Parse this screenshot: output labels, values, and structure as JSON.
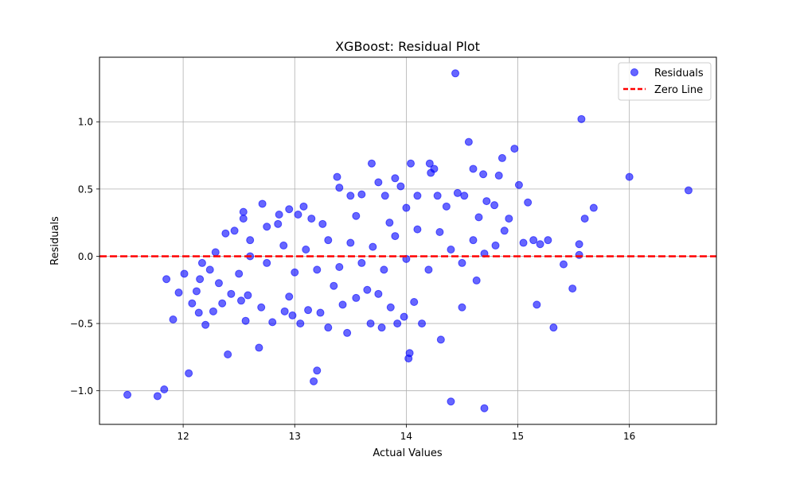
{
  "chart_data": {
    "type": "scatter",
    "title": "XGBoost: Residual Plot",
    "xlabel": "Actual Values",
    "ylabel": "Residuals",
    "xlim": [
      11.25,
      16.78
    ],
    "ylim": [
      -1.25,
      1.48
    ],
    "x_ticks": [
      12,
      13,
      14,
      15,
      16
    ],
    "x_tick_labels": [
      "12",
      "13",
      "14",
      "15",
      "16"
    ],
    "y_ticks": [
      -1.0,
      -0.5,
      0.0,
      0.5,
      1.0
    ],
    "y_tick_labels": [
      "−1.0",
      "−0.5",
      "0.0",
      "0.5",
      "1.0"
    ],
    "grid": true,
    "legend_position": "top-right",
    "series": [
      {
        "name": "Residuals",
        "kind": "scatter",
        "color": "#0000ff",
        "opacity": 0.6,
        "points": [
          [
            11.5,
            -1.03
          ],
          [
            11.77,
            -1.04
          ],
          [
            11.83,
            -0.99
          ],
          [
            11.85,
            -0.17
          ],
          [
            11.91,
            -0.47
          ],
          [
            11.96,
            -0.27
          ],
          [
            12.01,
            -0.13
          ],
          [
            12.05,
            -0.87
          ],
          [
            12.08,
            -0.35
          ],
          [
            12.12,
            -0.26
          ],
          [
            12.14,
            -0.42
          ],
          [
            12.15,
            -0.17
          ],
          [
            12.17,
            -0.05
          ],
          [
            12.2,
            -0.51
          ],
          [
            12.24,
            -0.1
          ],
          [
            12.27,
            -0.41
          ],
          [
            12.29,
            0.03
          ],
          [
            12.32,
            -0.2
          ],
          [
            12.35,
            -0.35
          ],
          [
            12.38,
            0.17
          ],
          [
            12.4,
            -0.73
          ],
          [
            12.43,
            -0.28
          ],
          [
            12.46,
            0.19
          ],
          [
            12.5,
            -0.13
          ],
          [
            12.52,
            -0.33
          ],
          [
            12.54,
            0.33
          ],
          [
            12.54,
            0.28
          ],
          [
            12.56,
            -0.48
          ],
          [
            12.58,
            -0.29
          ],
          [
            12.6,
            0.12
          ],
          [
            12.68,
            -0.68
          ],
          [
            12.7,
            -0.38
          ],
          [
            12.71,
            0.39
          ],
          [
            12.75,
            0.22
          ],
          [
            12.8,
            -0.49
          ],
          [
            12.85,
            0.24
          ],
          [
            12.86,
            0.31
          ],
          [
            12.91,
            -0.41
          ],
          [
            12.95,
            0.35
          ],
          [
            12.98,
            -0.44
          ],
          [
            13.03,
            0.31
          ],
          [
            13.05,
            -0.5
          ],
          [
            13.08,
            0.37
          ],
          [
            13.12,
            -0.4
          ],
          [
            13.17,
            -0.93
          ],
          [
            13.2,
            -0.85
          ],
          [
            13.23,
            -0.42
          ],
          [
            13.3,
            -0.53
          ],
          [
            13.38,
            0.59
          ],
          [
            13.4,
            0.51
          ],
          [
            13.43,
            -0.36
          ],
          [
            13.47,
            -0.57
          ],
          [
            13.5,
            0.45
          ],
          [
            13.55,
            -0.31
          ],
          [
            13.6,
            0.46
          ],
          [
            13.68,
            -0.5
          ],
          [
            13.69,
            0.69
          ],
          [
            13.75,
            0.55
          ],
          [
            13.78,
            -0.53
          ],
          [
            13.81,
            0.45
          ],
          [
            13.86,
            -0.38
          ],
          [
            13.9,
            0.58
          ],
          [
            13.92,
            -0.5
          ],
          [
            13.95,
            0.52
          ],
          [
            13.98,
            -0.45
          ],
          [
            14.0,
            0.36
          ],
          [
            14.02,
            -0.76
          ],
          [
            14.03,
            -0.72
          ],
          [
            14.04,
            0.69
          ],
          [
            14.07,
            -0.34
          ],
          [
            14.1,
            0.45
          ],
          [
            14.14,
            -0.5
          ],
          [
            14.21,
            0.69
          ],
          [
            14.22,
            0.62
          ],
          [
            14.25,
            0.65
          ],
          [
            14.28,
            0.45
          ],
          [
            14.31,
            -0.62
          ],
          [
            14.36,
            0.37
          ],
          [
            14.4,
            -1.08
          ],
          [
            14.44,
            1.36
          ],
          [
            14.46,
            0.47
          ],
          [
            14.5,
            -0.38
          ],
          [
            14.52,
            0.45
          ],
          [
            14.56,
            0.85
          ],
          [
            14.6,
            0.65
          ],
          [
            14.63,
            -0.18
          ],
          [
            14.65,
            0.29
          ],
          [
            14.69,
            0.61
          ],
          [
            14.7,
            -1.13
          ],
          [
            14.72,
            0.41
          ],
          [
            14.79,
            0.38
          ],
          [
            14.83,
            0.6
          ],
          [
            14.86,
            0.73
          ],
          [
            14.88,
            0.19
          ],
          [
            14.92,
            0.28
          ],
          [
            14.97,
            0.8
          ],
          [
            15.01,
            0.53
          ],
          [
            15.05,
            0.1
          ],
          [
            15.09,
            0.4
          ],
          [
            15.14,
            0.12
          ],
          [
            15.17,
            -0.36
          ],
          [
            15.2,
            0.09
          ],
          [
            15.27,
            0.12
          ],
          [
            15.32,
            -0.53
          ],
          [
            15.41,
            -0.06
          ],
          [
            15.49,
            -0.24
          ],
          [
            15.55,
            0.09
          ],
          [
            15.55,
            0.01
          ],
          [
            15.57,
            1.02
          ],
          [
            15.6,
            0.28
          ],
          [
            15.68,
            0.36
          ],
          [
            16.0,
            0.59
          ],
          [
            16.53,
            0.49
          ],
          [
            12.6,
            0.0
          ],
          [
            12.75,
            -0.05
          ],
          [
            12.9,
            0.08
          ],
          [
            13.0,
            -0.12
          ],
          [
            13.1,
            0.05
          ],
          [
            13.2,
            -0.1
          ],
          [
            13.3,
            0.12
          ],
          [
            13.4,
            -0.08
          ],
          [
            13.5,
            0.1
          ],
          [
            13.6,
            -0.05
          ],
          [
            13.7,
            0.07
          ],
          [
            13.8,
            -0.1
          ],
          [
            13.9,
            0.15
          ],
          [
            14.0,
            -0.02
          ],
          [
            14.1,
            0.2
          ],
          [
            14.2,
            -0.1
          ],
          [
            14.3,
            0.18
          ],
          [
            14.4,
            0.05
          ],
          [
            14.5,
            -0.05
          ],
          [
            14.6,
            0.12
          ],
          [
            14.7,
            0.02
          ],
          [
            14.8,
            0.08
          ],
          [
            13.25,
            0.24
          ],
          [
            13.35,
            -0.22
          ],
          [
            13.55,
            0.3
          ],
          [
            13.65,
            -0.25
          ],
          [
            13.85,
            0.25
          ],
          [
            13.75,
            -0.28
          ],
          [
            12.95,
            -0.3
          ],
          [
            13.15,
            0.28
          ]
        ]
      }
    ],
    "lines": [
      {
        "name": "Zero Line",
        "y": 0,
        "color": "#ff0000",
        "style": "dashed"
      }
    ]
  }
}
